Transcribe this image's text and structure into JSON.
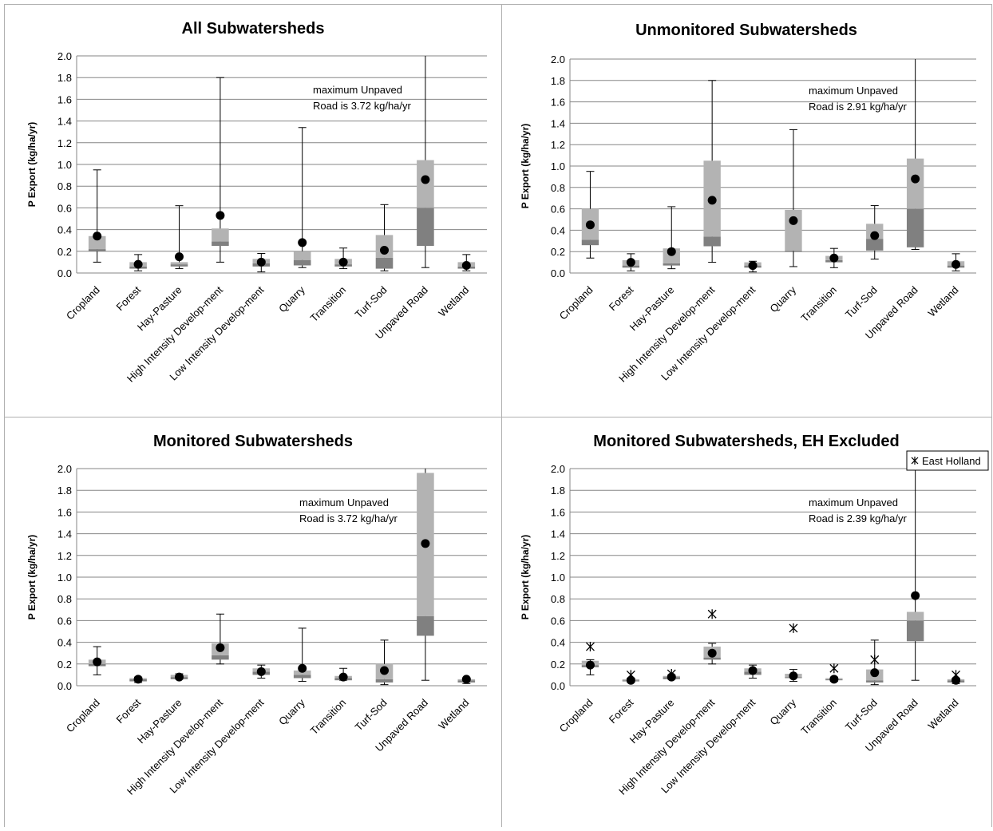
{
  "chart_data": [
    {
      "type": "box",
      "title": "All Subwatersheds",
      "ylabel": "P Export (kg/ha/yr)",
      "ylim": [
        0,
        2.0
      ],
      "yticks": [
        "0.0",
        "0.2",
        "0.4",
        "0.6",
        "0.8",
        "1.0",
        "1.2",
        "1.4",
        "1.6",
        "1.8",
        "2.0"
      ],
      "categories": [
        "Cropland",
        "Forest",
        "Hay-Pasture",
        "High Intensity Develop-ment",
        "Low Intensity Develop-ment",
        "Quarry",
        "Transition",
        "Turf-Sod",
        "Unpaved Road",
        "Wetland"
      ],
      "min": [
        0.1,
        0.02,
        0.04,
        0.1,
        0.01,
        0.05,
        0.04,
        0.02,
        0.05,
        0.02
      ],
      "q1": [
        0.2,
        0.04,
        0.06,
        0.25,
        0.06,
        0.07,
        0.06,
        0.04,
        0.25,
        0.04
      ],
      "median": [
        0.22,
        0.06,
        0.08,
        0.29,
        0.09,
        0.12,
        0.08,
        0.14,
        0.6,
        0.06
      ],
      "q3": [
        0.34,
        0.1,
        0.1,
        0.41,
        0.13,
        0.2,
        0.13,
        0.35,
        1.04,
        0.1
      ],
      "max": [
        0.95,
        0.17,
        0.62,
        1.8,
        0.18,
        1.34,
        0.23,
        0.63,
        2.0,
        0.17
      ],
      "mean": [
        0.34,
        0.08,
        0.15,
        0.53,
        0.1,
        0.28,
        0.1,
        0.21,
        0.86,
        0.07
      ],
      "annotation": [
        "maximum Unpaved",
        "Road is 3.72 kg/ha/yr"
      ]
    },
    {
      "type": "box",
      "title": "Unmonitored Subwatersheds",
      "ylabel": "P Export (kg/ha/yr)",
      "ylim": [
        0,
        2.0
      ],
      "yticks": [
        "0.0",
        "0.2",
        "0.4",
        "0.6",
        "0.8",
        "1.0",
        "1.2",
        "1.4",
        "1.6",
        "1.8",
        "2.0"
      ],
      "categories": [
        "Cropland",
        "Forest",
        "Hay-Pasture",
        "High Intensity Develop-ment",
        "Low Intensity Develop-ment",
        "Quarry",
        "Transition",
        "Turf-Sod",
        "Unpaved Road",
        "Wetland"
      ],
      "min": [
        0.14,
        0.02,
        0.04,
        0.1,
        0.01,
        0.06,
        0.05,
        0.13,
        0.22,
        0.02
      ],
      "q1": [
        0.26,
        0.05,
        0.07,
        0.25,
        0.05,
        0.21,
        0.1,
        0.21,
        0.24,
        0.05
      ],
      "median": [
        0.31,
        0.07,
        0.09,
        0.34,
        0.07,
        0.21,
        0.12,
        0.32,
        0.6,
        0.07
      ],
      "q3": [
        0.6,
        0.12,
        0.23,
        1.05,
        0.1,
        0.59,
        0.16,
        0.46,
        1.07,
        0.11
      ],
      "max": [
        0.95,
        0.18,
        0.62,
        1.8,
        0.11,
        1.34,
        0.23,
        0.63,
        2.0,
        0.18
      ],
      "mean": [
        0.45,
        0.1,
        0.2,
        0.68,
        0.07,
        0.49,
        0.14,
        0.35,
        0.88,
        0.08
      ],
      "annotation": [
        "maximum Unpaved",
        "Road is 2.91 kg/ha/yr"
      ]
    },
    {
      "type": "box",
      "title": "Monitored Subwatersheds",
      "ylabel": "P Export (kg/ha/yr)",
      "ylim": [
        0,
        2.0
      ],
      "yticks": [
        "0.0",
        "0.2",
        "0.4",
        "0.6",
        "0.8",
        "1.0",
        "1.2",
        "1.4",
        "1.6",
        "1.8",
        "2.0"
      ],
      "categories": [
        "Cropland",
        "Forest",
        "Hay-Pasture",
        "High Intensity Develop-ment",
        "Low Intensity Develop-ment",
        "Quarry",
        "Transition",
        "Turf-Sod",
        "Unpaved Road",
        "Wetland"
      ],
      "min": [
        0.1,
        0.03,
        0.06,
        0.2,
        0.07,
        0.04,
        0.05,
        0.01,
        0.05,
        0.02
      ],
      "q1": [
        0.18,
        0.04,
        0.06,
        0.24,
        0.1,
        0.07,
        0.05,
        0.03,
        0.46,
        0.03
      ],
      "median": [
        0.2,
        0.06,
        0.08,
        0.28,
        0.13,
        0.1,
        0.07,
        0.06,
        0.64,
        0.05
      ],
      "q3": [
        0.24,
        0.07,
        0.1,
        0.39,
        0.16,
        0.14,
        0.09,
        0.2,
        1.96,
        0.06
      ],
      "max": [
        0.36,
        0.08,
        0.11,
        0.66,
        0.19,
        0.53,
        0.16,
        0.42,
        2.0,
        0.07
      ],
      "mean": [
        0.22,
        0.06,
        0.08,
        0.35,
        0.13,
        0.16,
        0.08,
        0.14,
        1.31,
        0.06
      ],
      "annotation": [
        "maximum Unpaved",
        "Road is 3.72 kg/ha/yr"
      ]
    },
    {
      "type": "box",
      "title": "Monitored Subwatersheds, EH Excluded",
      "ylabel": "P Export (kg/ha/yr)",
      "ylim": [
        0,
        2.0
      ],
      "yticks": [
        "0.0",
        "0.2",
        "0.4",
        "0.6",
        "0.8",
        "1.0",
        "1.2",
        "1.4",
        "1.6",
        "1.8",
        "2.0"
      ],
      "categories": [
        "Cropland",
        "Forest",
        "Hay-Pasture",
        "High Intensity Develop-ment",
        "Low Intensity Develop-ment",
        "Quarry",
        "Transition",
        "Turf-Sod",
        "Unpaved Road",
        "Wetland"
      ],
      "min": [
        0.1,
        0.03,
        0.06,
        0.2,
        0.07,
        0.04,
        0.04,
        0.01,
        0.05,
        0.02
      ],
      "q1": [
        0.17,
        0.04,
        0.06,
        0.24,
        0.1,
        0.07,
        0.05,
        0.03,
        0.41,
        0.03
      ],
      "median": [
        0.19,
        0.05,
        0.08,
        0.26,
        0.13,
        0.08,
        0.06,
        0.05,
        0.6,
        0.05
      ],
      "q3": [
        0.23,
        0.06,
        0.09,
        0.36,
        0.16,
        0.11,
        0.07,
        0.15,
        0.68,
        0.06
      ],
      "max": [
        0.24,
        0.07,
        0.1,
        0.39,
        0.19,
        0.15,
        0.08,
        0.42,
        2.0,
        0.07
      ],
      "mean": [
        0.19,
        0.05,
        0.08,
        0.3,
        0.14,
        0.09,
        0.06,
        0.12,
        0.83,
        0.05
      ],
      "series_x": {
        "name": "East Holland",
        "values": [
          0.36,
          0.1,
          0.11,
          0.66,
          null,
          0.53,
          0.16,
          0.24,
          null,
          0.1
        ]
      },
      "legend": [
        "East Holland"
      ],
      "legend_position": "top-right",
      "annotation": [
        "maximum Unpaved",
        "Road is 2.39 kg/ha/yr"
      ]
    }
  ],
  "colors": {
    "box_upper": "#b3b3b3",
    "box_lower": "#808080",
    "grid": "#868686",
    "mean_dot": "#000000"
  }
}
